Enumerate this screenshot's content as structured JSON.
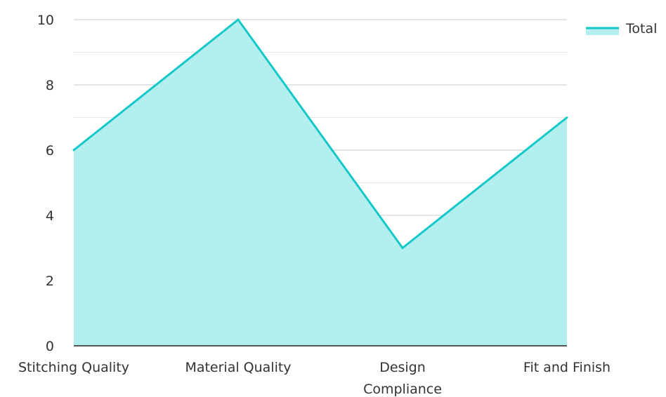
{
  "chart_data": {
    "type": "area",
    "categories": [
      "Stitching Quality",
      "Material Quality",
      "Design Compliance",
      "Fit and Finish"
    ],
    "category_label_lines": [
      [
        "Stitching Quality"
      ],
      [
        "Material Quality"
      ],
      [
        "Design",
        "Compliance"
      ],
      [
        "Fit and Finish"
      ]
    ],
    "series": [
      {
        "name": "Total",
        "values": [
          6,
          10,
          3,
          7
        ]
      }
    ],
    "ylim": [
      0,
      10
    ],
    "y_ticks": [
      "0",
      "2",
      "4",
      "6",
      "8",
      "10"
    ],
    "grid": true,
    "legend_placement": "top-right",
    "colors": {
      "line": "#14c8c8",
      "fill": "#b3efef",
      "grid_major": "#c8c8c8",
      "grid_minor": "#e6e6e6",
      "axis": "#222222",
      "text": "#333333"
    }
  }
}
